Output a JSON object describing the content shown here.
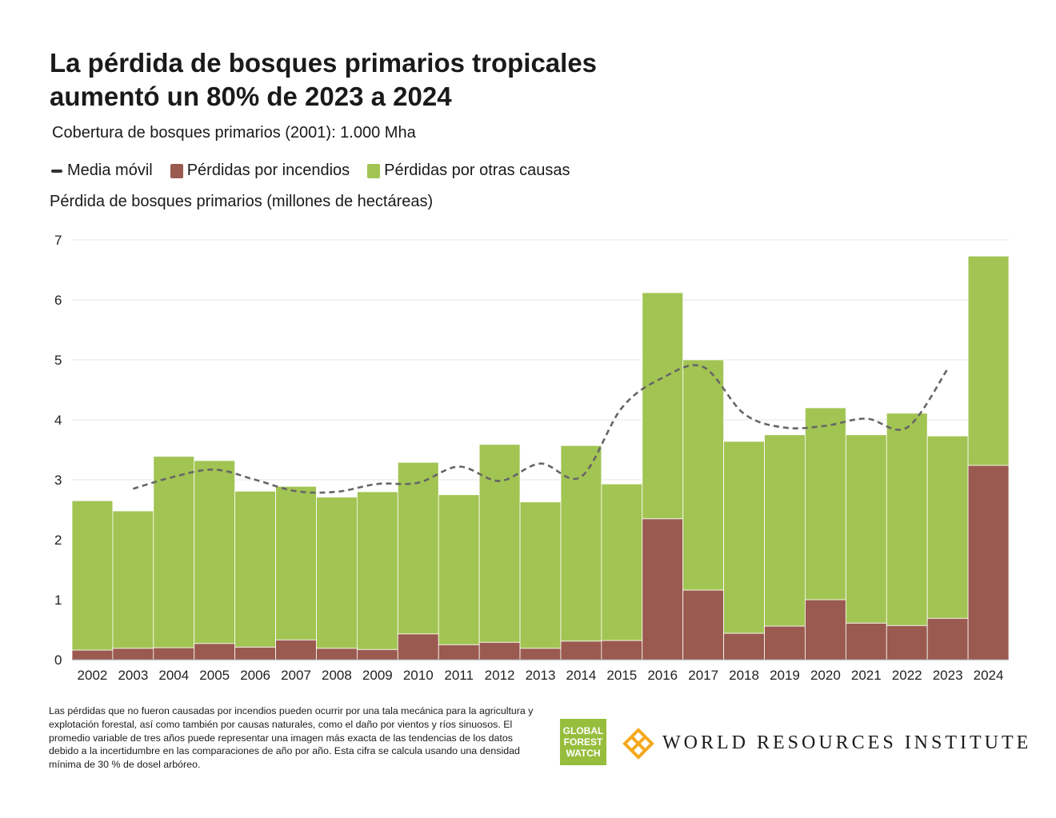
{
  "title_line1": "La pérdida de bosques primarios tropicales",
  "title_line2": "aumentó un 80% de 2023 a 2024",
  "subtitle": "Cobertura de bosques primarios (2001): 1.000 Mha",
  "legend": [
    {
      "label": "Media móvil",
      "color": "#333333"
    },
    {
      "label": "Pérdidas por incendios",
      "color": "#9b5a4f"
    },
    {
      "label": "Pérdidas por otras causas",
      "color": "#a2c453"
    }
  ],
  "chart_data": {
    "type": "bar",
    "stacked": true,
    "ylabel": "Pérdida de bosques primarios (millones de hectáreas)",
    "ylim": [
      0,
      7
    ],
    "yticks": [
      "0",
      "1",
      "2",
      "3",
      "4",
      "5",
      "6",
      "7"
    ],
    "grid": true,
    "categories": [
      "2002",
      "2003",
      "2004",
      "2005",
      "2006",
      "2007",
      "2008",
      "2009",
      "2010",
      "2011",
      "2012",
      "2013",
      "2014",
      "2015",
      "2016",
      "2017",
      "2018",
      "2019",
      "2020",
      "2021",
      "2022",
      "2023",
      "2024"
    ],
    "series": [
      {
        "name": "Pérdidas por incendios",
        "values": [
          0.16,
          0.19,
          0.2,
          0.27,
          0.21,
          0.33,
          0.19,
          0.17,
          0.43,
          0.25,
          0.29,
          0.19,
          0.31,
          0.32,
          2.35,
          1.16,
          0.44,
          0.56,
          1.0,
          0.61,
          0.57,
          0.69,
          3.24
        ]
      },
      {
        "name": "Pérdidas por otras causas",
        "values": [
          2.49,
          2.29,
          3.19,
          3.05,
          2.6,
          2.56,
          2.52,
          2.63,
          2.86,
          2.5,
          3.3,
          2.44,
          3.26,
          2.61,
          3.77,
          3.84,
          3.2,
          3.19,
          3.2,
          3.14,
          3.54,
          3.04,
          3.49
        ]
      }
    ],
    "moving_average": {
      "name": "Media móvil",
      "categories": [
        "2003",
        "2004",
        "2005",
        "2006",
        "2007",
        "2008",
        "2009",
        "2010",
        "2011",
        "2012",
        "2013",
        "2014",
        "2015",
        "2016",
        "2017",
        "2018",
        "2019",
        "2020",
        "2021",
        "2022",
        "2023"
      ],
      "values": [
        2.85,
        3.05,
        3.17,
        3.0,
        2.81,
        2.8,
        2.93,
        2.95,
        3.22,
        2.98,
        3.27,
        3.05,
        4.2,
        4.7,
        4.88,
        4.1,
        3.87,
        3.9,
        4.02,
        3.87,
        4.85
      ]
    }
  },
  "footnote": "Las pérdidas que no fueron causadas por incendios pueden ocurrir por una tala mecánica para la agricultura y explotación forestal, así como también por causas naturales, como el daño por vientos y ríos sinuosos. El promedio variable de tres años puede representar una imagen más exacta de las tendencias de los datos debido a la incertidumbre en las comparaciones de año por año. Esta cifra se calcula usando una densidad mínima de 30 % de dosel arbóreo.",
  "logos": {
    "gfw": [
      "GLOBAL",
      "FOREST",
      "WATCH"
    ],
    "wri": "WORLD RESOURCES INSTITUTE"
  }
}
